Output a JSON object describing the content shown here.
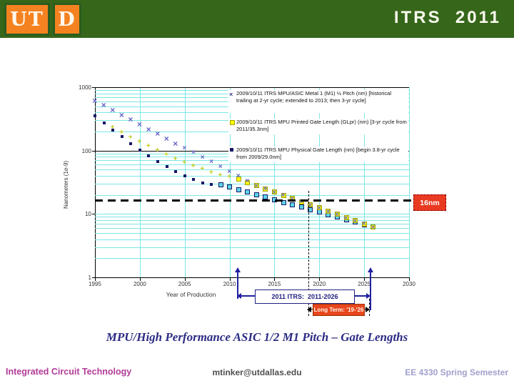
{
  "header": {
    "logo": [
      "UT",
      "D"
    ],
    "banner_title": "ITRS  2011"
  },
  "chart_data": {
    "type": "scatter",
    "title": "",
    "xlabel": "Year of Production",
    "ylabel": "Nanometers (1e-9)",
    "x_range": [
      1995,
      2030
    ],
    "y_scale": "log",
    "y_range": [
      1,
      1000
    ],
    "grid": true,
    "legend_position": "top-right",
    "x_ticks": [
      "1995",
      "2000",
      "2005",
      "2010",
      "2015",
      "2020",
      "2025",
      "2030"
    ],
    "y_ticks": [
      "1000",
      "100",
      "10",
      "1"
    ],
    "reference_line": {
      "value_nm": 16,
      "label": "16nm"
    },
    "series": [
      {
        "name": "2009/10/11 ITRS MPU/ASIC Metal 1 (M1) ½ Pitch (nm) [historical trailing at 2-yr cycle; extended to 2013; then 3-yr cycle]",
        "marker": "x",
        "color": "#6565c8",
        "points": [
          [
            1995,
            608
          ],
          [
            1996,
            511
          ],
          [
            1997,
            430
          ],
          [
            1998,
            362
          ],
          [
            1999,
            304
          ],
          [
            2000,
            256
          ],
          [
            2001,
            215
          ],
          [
            2002,
            181
          ],
          [
            2003,
            152
          ],
          [
            2004,
            128
          ],
          [
            2005,
            107
          ],
          [
            2006,
            90
          ],
          [
            2007,
            76
          ],
          [
            2008,
            64
          ],
          [
            2009,
            54
          ],
          [
            2010,
            45
          ],
          [
            2011,
            38
          ],
          [
            2012,
            32
          ],
          [
            2013,
            27
          ],
          [
            2014,
            24
          ],
          [
            2015,
            21.2
          ],
          [
            2016,
            18.9
          ],
          [
            2017,
            16.9
          ],
          [
            2018,
            15
          ],
          [
            2019,
            13.4
          ],
          [
            2020,
            11.9
          ],
          [
            2021,
            10.6
          ],
          [
            2022,
            9.5
          ],
          [
            2023,
            8.4
          ],
          [
            2024,
            7.5
          ],
          [
            2025,
            6.7
          ],
          [
            2026,
            6
          ]
        ]
      },
      {
        "name": "2009/10/11 ITRS MPU Printed Gate Length (GLpr) (nm) [3-yr cycle from 2011/35.3nm]",
        "marker": "plus-then-square",
        "color": "#ffff00",
        "points": [
          [
            1997,
            230
          ],
          [
            1998,
            190
          ],
          [
            1999,
            160
          ],
          [
            2000,
            135
          ],
          [
            2001,
            115
          ],
          [
            2002,
            98
          ],
          [
            2003,
            84
          ],
          [
            2004,
            73
          ],
          [
            2005,
            64
          ],
          [
            2006,
            56
          ],
          [
            2007,
            50
          ],
          [
            2008,
            44
          ],
          [
            2009,
            40
          ],
          [
            2010,
            37.5
          ],
          [
            2011,
            35.3
          ],
          [
            2012,
            31.5
          ],
          [
            2013,
            28
          ],
          [
            2014,
            25
          ],
          [
            2015,
            22.3
          ],
          [
            2016,
            19.8
          ],
          [
            2017,
            17.7
          ],
          [
            2018,
            15.7
          ],
          [
            2019,
            14
          ],
          [
            2020,
            12.5
          ],
          [
            2021,
            11.1
          ],
          [
            2022,
            9.9
          ],
          [
            2023,
            8.8
          ],
          [
            2024,
            7.9
          ],
          [
            2025,
            7
          ],
          [
            2026,
            6.3
          ]
        ]
      },
      {
        "name": "2009/10/11 ITRS MPU Physical Gate Length (nm) [begin 3.8-yr cycle from 2009/29.0nm]",
        "marker": "square",
        "color": "#171766",
        "points": [
          [
            1995,
            350
          ],
          [
            1996,
            270
          ],
          [
            1997,
            210
          ],
          [
            1998,
            165
          ],
          [
            1999,
            130
          ],
          [
            2000,
            103
          ],
          [
            2001,
            83
          ],
          [
            2002,
            68
          ],
          [
            2003,
            56
          ],
          [
            2004,
            47
          ],
          [
            2005,
            40
          ],
          [
            2006,
            35
          ],
          [
            2007,
            31
          ],
          [
            2008,
            29.5
          ],
          [
            2009,
            29
          ],
          [
            2010,
            26.5
          ],
          [
            2011,
            24.2
          ],
          [
            2012,
            22.1
          ],
          [
            2013,
            20.2
          ],
          [
            2014,
            18.4
          ],
          [
            2015,
            16.8
          ],
          [
            2016,
            15.3
          ],
          [
            2017,
            14
          ],
          [
            2018,
            12.8
          ],
          [
            2019,
            11.7
          ],
          [
            2020,
            10.7
          ],
          [
            2021,
            9.7
          ],
          [
            2022,
            8.9
          ],
          [
            2023,
            8.1
          ],
          [
            2024,
            7.4
          ],
          [
            2025,
            6.8
          ],
          [
            2026,
            6.2
          ]
        ]
      }
    ],
    "annotations": [
      "2011 ITRS:  2011-2026",
      "Long Term: '19-'26",
      "16nm"
    ]
  },
  "annotations": {
    "ref_label": "16nm",
    "span_label": "2011 ITRS:  2011-2026",
    "long_term_label": "Long Term: '19-'26"
  },
  "caption": "MPU/High Performance ASIC 1/2 M1 Pitch – Gate Lengths",
  "footer": {
    "left": "Integrated Circuit Technology",
    "center": "mtinker@utdallas.edu",
    "right": "EE 4330 Spring Semester"
  }
}
